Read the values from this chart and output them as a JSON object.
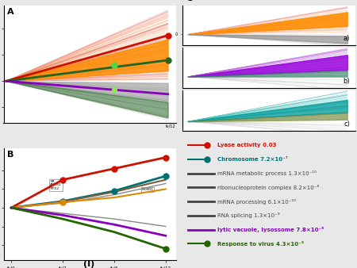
{
  "title_A": "A",
  "title_B": "B",
  "title_C": "C",
  "subtitle_a": "a)",
  "subtitle_b": "b)",
  "subtitle_c": "c)",
  "footer": "(I)",
  "legend_items": [
    {
      "label": "Lyase activity 0.03",
      "color": "#cc1100",
      "bold": true,
      "marker": "circle"
    },
    {
      "label": "Chromosome 7.2×10⁻⁷",
      "color": "#007070",
      "bold": true,
      "marker": "circle"
    },
    {
      "label": "mRNA metabolic process 1.3×10⁻¹⁰",
      "color": "#444444",
      "bold": false,
      "marker": "line"
    },
    {
      "label": "ribonucleoprotein complex 8.2×10⁻⁸",
      "color": "#444444",
      "bold": false,
      "marker": "line"
    },
    {
      "label": "mRNA processing 6.1×10⁻¹⁰",
      "color": "#444444",
      "bold": false,
      "marker": "line"
    },
    {
      "label": "RNA splicing 1.3×10⁻⁹",
      "color": "#444444",
      "bold": false,
      "marker": "line"
    },
    {
      "label": "lytic vacuole, lysossome 7.8×10⁻⁵",
      "color": "#8800bb",
      "bold": true,
      "marker": "line"
    },
    {
      "label": "Response to virus 4.3×10⁻³",
      "color": "#226600",
      "bold": true,
      "marker": "circle"
    }
  ],
  "seed": 42
}
